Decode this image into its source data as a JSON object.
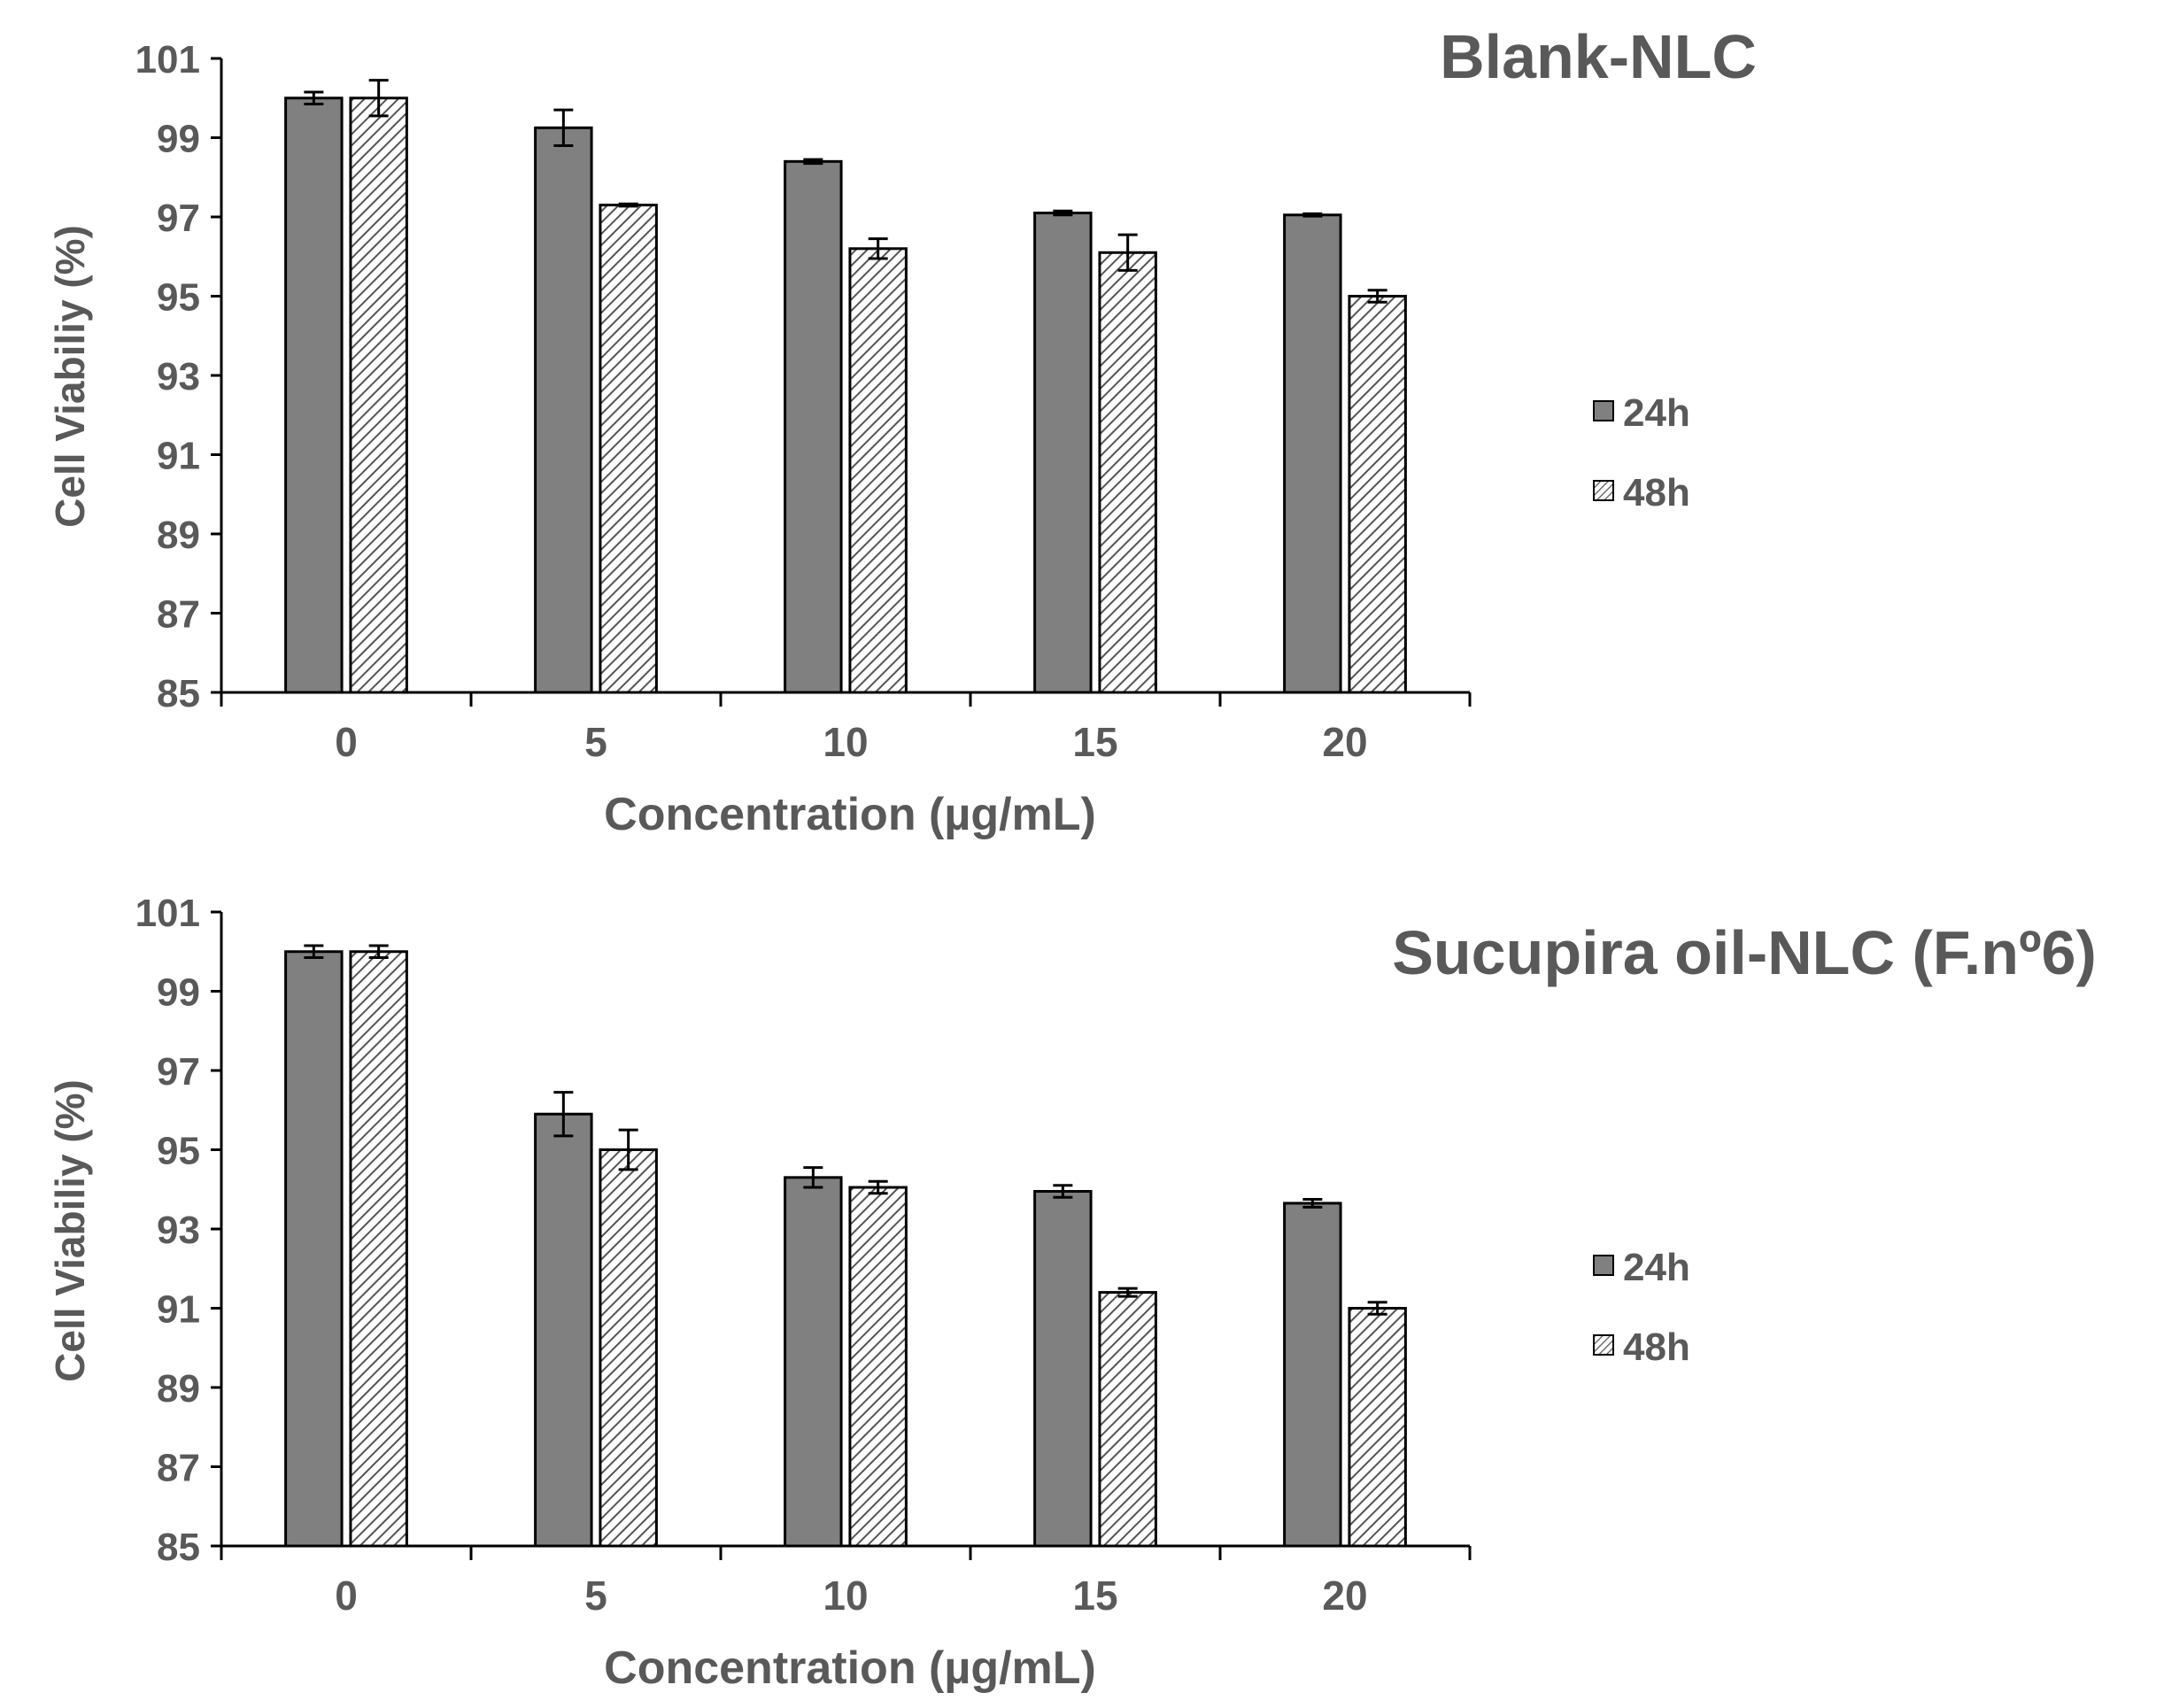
{
  "colors": {
    "bar_24h": "#808080",
    "hatch_stroke": "#555555",
    "hatch_bg": "#ffffff",
    "axis": "#000000",
    "text": "#595959"
  },
  "chart_data": [
    {
      "type": "bar",
      "title": "Blank-NLC",
      "xlabel": "Concentration (µg/mL)",
      "ylabel": "Cell Viabiliy (%)",
      "ylim": [
        85,
        101
      ],
      "yticks": [
        85,
        87,
        89,
        91,
        93,
        95,
        97,
        99,
        101
      ],
      "categories": [
        "0",
        "5",
        "10",
        "15",
        "20"
      ],
      "legend_position": "right",
      "series": [
        {
          "name": "24h",
          "pattern": "solid",
          "values": [
            100.0,
            99.25,
            98.4,
            97.1,
            97.05
          ],
          "errors": [
            0.15,
            0.45,
            0.05,
            0.05,
            0.03
          ]
        },
        {
          "name": "48h",
          "pattern": "hatched",
          "values": [
            100.0,
            97.3,
            96.2,
            96.1,
            95.0
          ],
          "errors": [
            0.45,
            0.03,
            0.25,
            0.45,
            0.15
          ]
        }
      ]
    },
    {
      "type": "bar",
      "title": "Sucupira oil-NLC (F.nº6)",
      "xlabel": "Concentration (µg/mL)",
      "ylabel": "Cell Viabiliy (%)",
      "ylim": [
        85,
        101
      ],
      "yticks": [
        85,
        87,
        89,
        91,
        93,
        95,
        97,
        99,
        101
      ],
      "categories": [
        "0",
        "5",
        "10",
        "15",
        "20"
      ],
      "legend_position": "right",
      "series": [
        {
          "name": "24h",
          "pattern": "solid",
          "values": [
            100.0,
            95.9,
            94.3,
            93.95,
            93.65
          ],
          "errors": [
            0.15,
            0.55,
            0.25,
            0.15,
            0.1
          ]
        },
        {
          "name": "48h",
          "pattern": "hatched",
          "values": [
            100.0,
            95.0,
            94.05,
            91.4,
            91.0
          ],
          "errors": [
            0.15,
            0.5,
            0.15,
            0.1,
            0.15
          ]
        }
      ]
    }
  ]
}
